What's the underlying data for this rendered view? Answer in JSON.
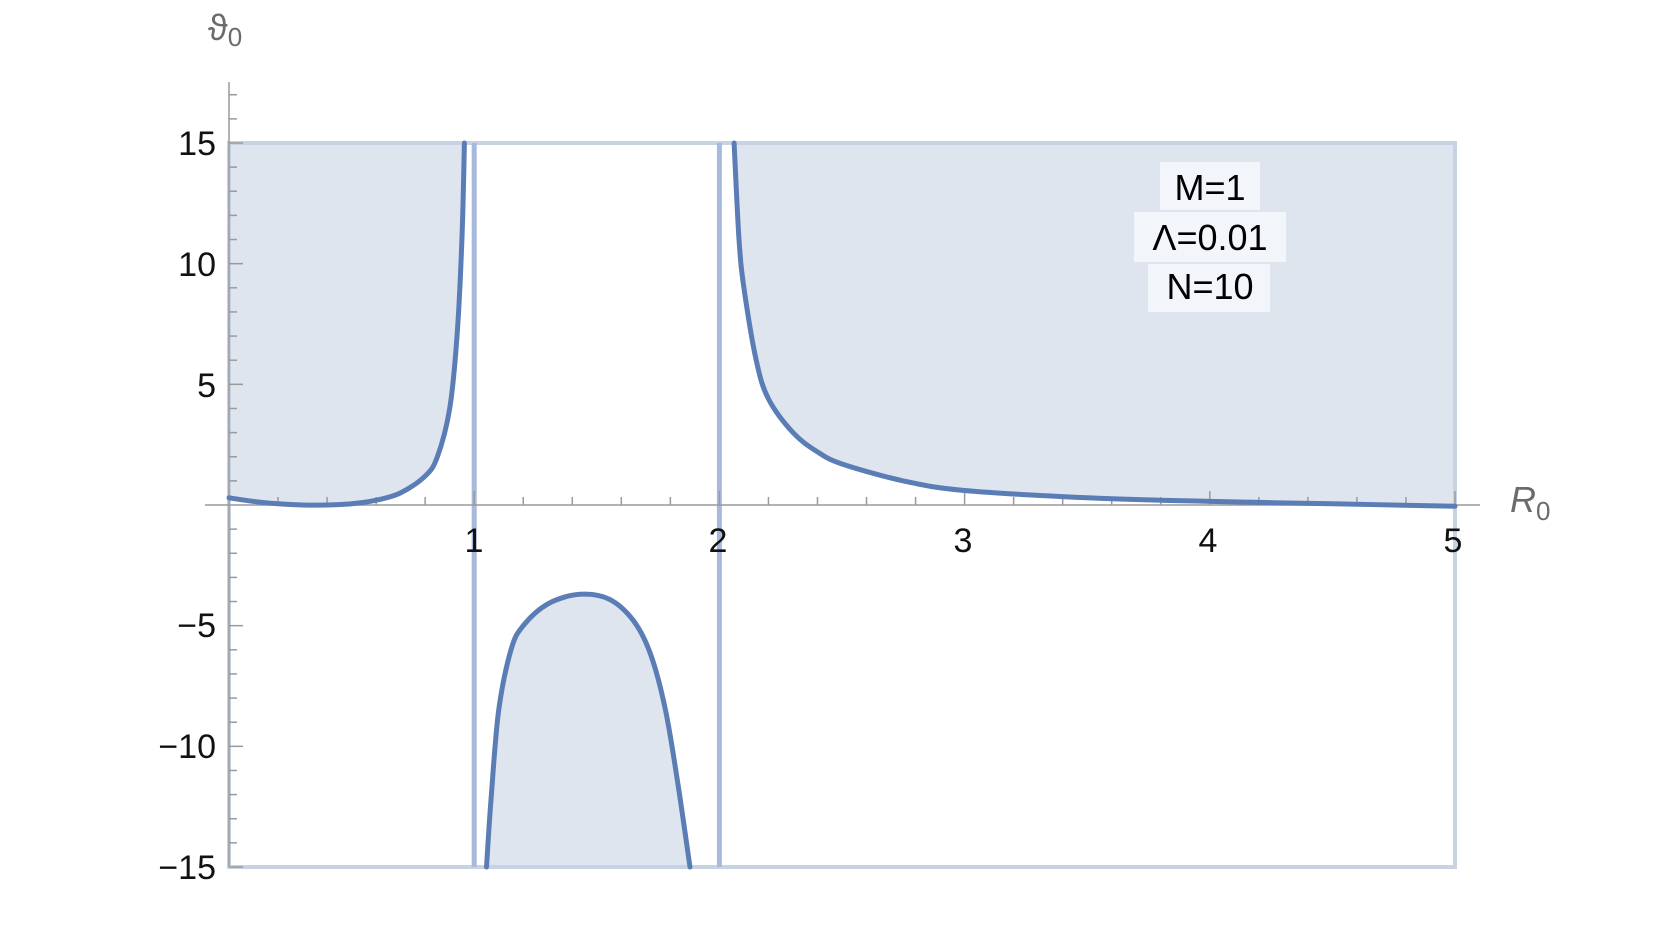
{
  "chart_data": {
    "type": "area",
    "xlabel": "R",
    "xlabel_sub": "0",
    "ylabel": "ϑ",
    "ylabel_sub": "0",
    "xlim": [
      0,
      5
    ],
    "ylim": [
      -15,
      15
    ],
    "x_ticks": [
      1,
      2,
      3,
      4,
      5
    ],
    "y_ticks": [
      -15,
      -10,
      -5,
      5,
      10,
      15
    ],
    "x_tick_labels": [
      "1",
      "2",
      "3",
      "4",
      "5"
    ],
    "y_tick_labels": [
      "−15",
      "−10",
      "−5",
      "5",
      "10",
      "15"
    ],
    "vertical_lines": [
      1,
      2
    ],
    "series": [
      {
        "segment": "left",
        "fill": "above-curve",
        "points": [
          [
            0.0,
            0.3
          ],
          [
            0.1,
            0.15
          ],
          [
            0.2,
            0.05
          ],
          [
            0.3,
            0.0
          ],
          [
            0.4,
            0.0
          ],
          [
            0.5,
            0.05
          ],
          [
            0.6,
            0.2
          ],
          [
            0.7,
            0.5
          ],
          [
            0.8,
            1.2
          ],
          [
            0.85,
            2.0
          ],
          [
            0.9,
            4.0
          ],
          [
            0.93,
            7.0
          ],
          [
            0.95,
            11.0
          ],
          [
            0.96,
            15.0
          ]
        ]
      },
      {
        "segment": "middle",
        "fill": "below-curve",
        "points": [
          [
            1.05,
            -15.0
          ],
          [
            1.07,
            -12.0
          ],
          [
            1.1,
            -8.5
          ],
          [
            1.15,
            -6.0
          ],
          [
            1.2,
            -5.0
          ],
          [
            1.3,
            -4.1
          ],
          [
            1.43,
            -3.7
          ],
          [
            1.55,
            -3.9
          ],
          [
            1.65,
            -4.8
          ],
          [
            1.72,
            -6.2
          ],
          [
            1.78,
            -8.5
          ],
          [
            1.83,
            -11.5
          ],
          [
            1.88,
            -15.0
          ]
        ]
      },
      {
        "segment": "right",
        "fill": "above-curve",
        "points": [
          [
            2.06,
            15.0
          ],
          [
            2.08,
            11.0
          ],
          [
            2.1,
            9.0
          ],
          [
            2.15,
            6.0
          ],
          [
            2.2,
            4.4
          ],
          [
            2.3,
            3.0
          ],
          [
            2.4,
            2.2
          ],
          [
            2.5,
            1.7
          ],
          [
            2.75,
            1.0
          ],
          [
            3.0,
            0.6
          ],
          [
            3.5,
            0.3
          ],
          [
            4.0,
            0.15
          ],
          [
            4.5,
            0.05
          ],
          [
            5.0,
            -0.05
          ]
        ]
      }
    ],
    "annotations": [
      "M=1",
      "Λ=0.01",
      "N=10"
    ],
    "colors": {
      "curve": "#5a7db5",
      "fill": "#dfe5ef",
      "frame": "#c7d3e5",
      "asymptote": "#a7badb"
    }
  }
}
